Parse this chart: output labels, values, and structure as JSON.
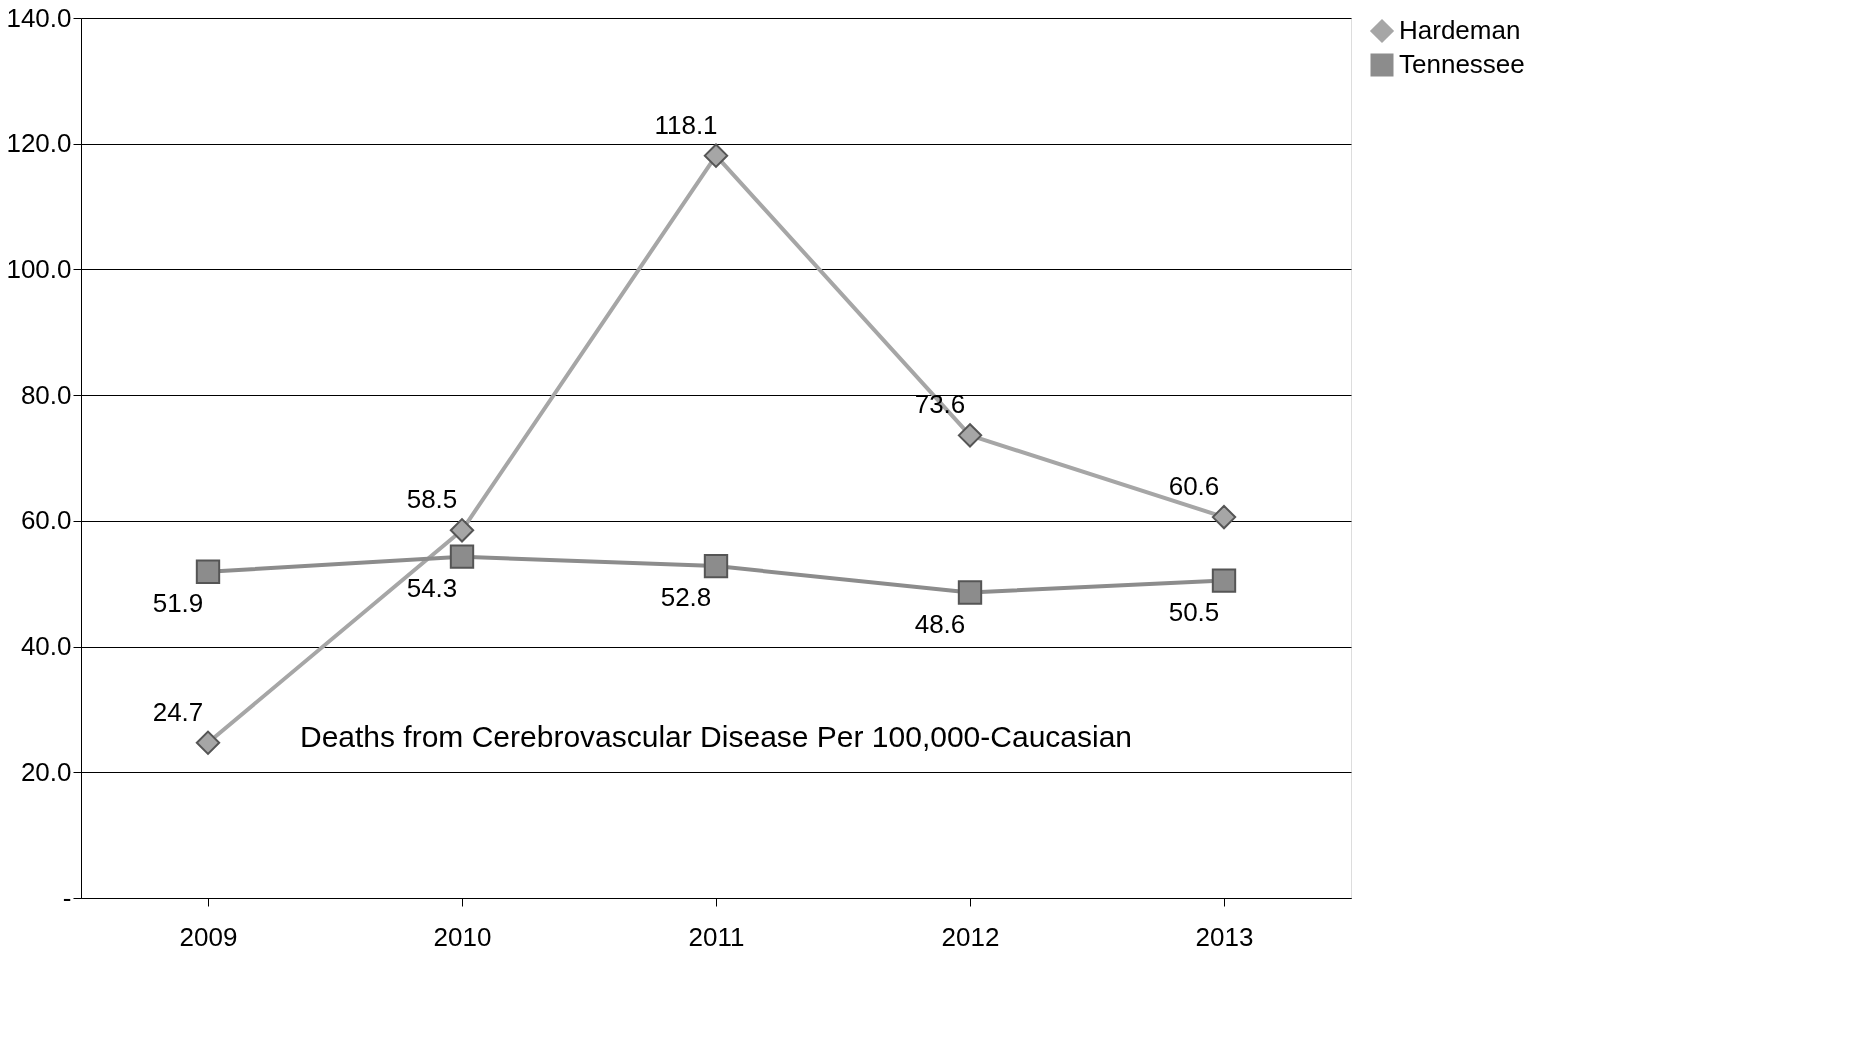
{
  "chart_data": {
    "type": "line",
    "title": "Deaths from Cerebrovascular Disease Per 100,000-Caucasian",
    "categories": [
      "2009",
      "2010",
      "2011",
      "2012",
      "2013"
    ],
    "series": [
      {
        "name": "Hardeman",
        "color": "#a6a6a6",
        "marker": "diamond",
        "values": [
          24.7,
          58.5,
          118.1,
          73.6,
          60.6
        ]
      },
      {
        "name": "Tennessee",
        "color": "#8c8c8c",
        "marker": "square",
        "values": [
          51.9,
          54.3,
          52.8,
          48.6,
          50.5
        ]
      }
    ],
    "ylim": [
      0,
      140
    ],
    "yticks": [
      {
        "value": 0,
        "label": "-"
      },
      {
        "value": 20,
        "label": "20.0"
      },
      {
        "value": 40,
        "label": "40.0"
      },
      {
        "value": 60,
        "label": "60.0"
      },
      {
        "value": 80,
        "label": "80.0"
      },
      {
        "value": 100,
        "label": "100.0"
      },
      {
        "value": 120,
        "label": "120.0"
      },
      {
        "value": 140,
        "label": "140.0"
      }
    ],
    "grid": "y",
    "legend": "right",
    "data_labels": true,
    "line_style": "solid"
  }
}
